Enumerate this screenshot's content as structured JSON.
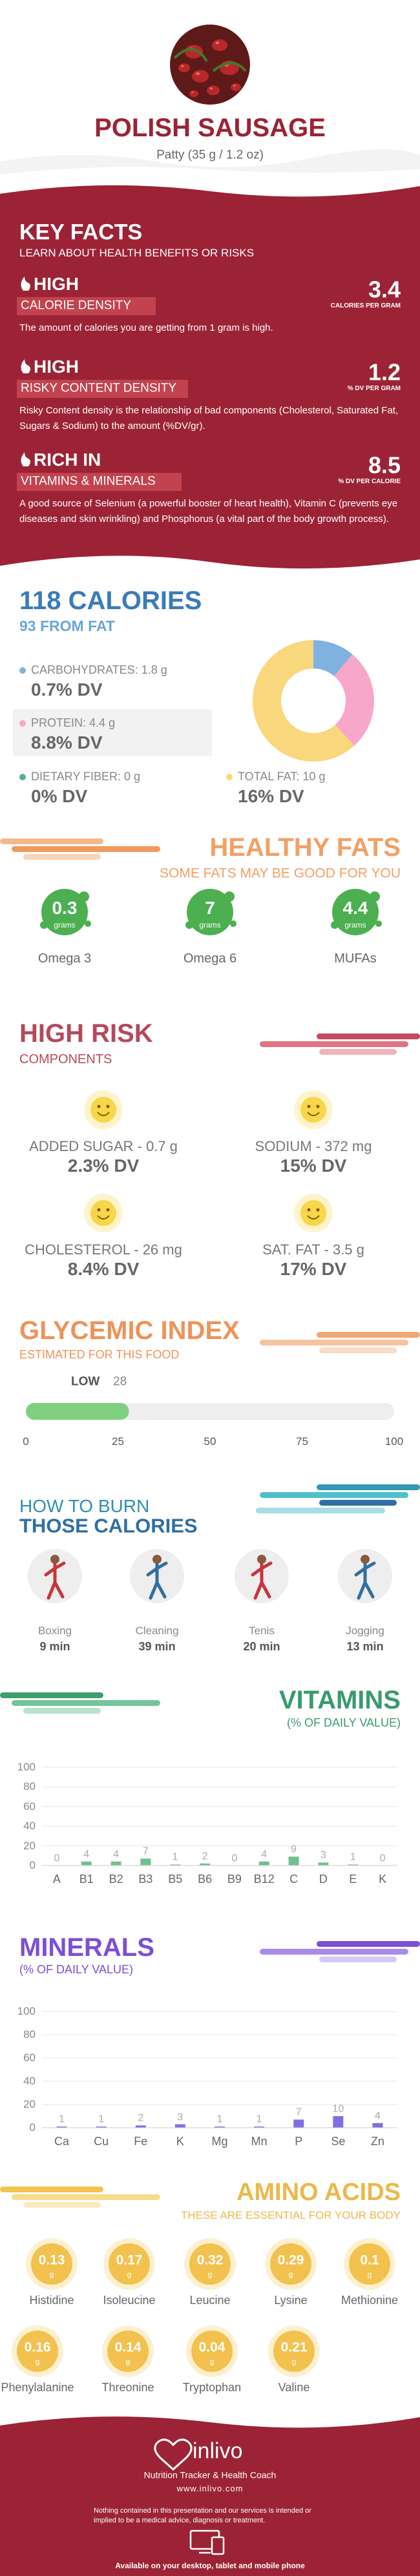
{
  "header": {
    "title": "POLISH SAUSAGE",
    "subtitle": "Patty (35 g / 1.2 oz)"
  },
  "key_facts": {
    "title": "KEY FACTS",
    "subtitle": "LEARN ABOUT HEALTH BENEFITS OR RISKS",
    "items": [
      {
        "level": "HIGH",
        "name": "CALORIE DENSITY",
        "value": 3.4,
        "unit": "CALORIES PER GRAM",
        "text": "The amount of calories you are getting from 1 gram is high."
      },
      {
        "level": "HIGH",
        "name": "RISKY CONTENT DENSITY",
        "value": 1.2,
        "unit": "% DV PER GRAM",
        "text": "Risky Content density is the relationship of bad components (Cholesterol, Saturated Fat, Sugars & Sodium) to the amount (%DV/gr)."
      },
      {
        "level": "RICH IN",
        "name": "VITAMINS & MINERALS",
        "value": 8.5,
        "unit": "% DV PER CALORIE",
        "text": "A good source of Selenium (a powerful booster of heart health), Vitamin C (prevents eye diseases and skin wrinkling) and Phosphorus (a vital part of the body growth process)."
      }
    ]
  },
  "calories": {
    "title": "118 CALORIES",
    "subtitle": "93 FROM FAT",
    "nutrients": [
      {
        "label": "CARBOHYDRATES: 1.8 g",
        "grams": 1.8,
        "dv": "0.7% DV",
        "color": "#7fb2e0"
      },
      {
        "label": "PROTEIN: 4.4 g",
        "grams": 4.4,
        "dv": "8.8% DV",
        "color": "#f7a8c9"
      },
      {
        "label": "DIETARY FIBER: 0 g",
        "grams": 0,
        "dv": "0% DV",
        "color": "#4cb38b"
      },
      {
        "label": "TOTAL FAT: 10 g",
        "grams": 10,
        "dv": "16% DV",
        "color": "#f9d77c"
      }
    ]
  },
  "healthy_fats": {
    "title": "HEALTHY FATS",
    "subtitle": "SOME FATS MAY BE GOOD FOR YOU",
    "items": [
      {
        "value": 0.3,
        "unit": "grams",
        "name": "Omega 3"
      },
      {
        "value": 7,
        "unit": "grams",
        "name": "Omega 6"
      },
      {
        "value": 4.4,
        "unit": "grams",
        "name": "MUFAs"
      }
    ]
  },
  "high_risk": {
    "title": "HIGH RISK",
    "subtitle": "COMPONENTS",
    "items": [
      {
        "label": "ADDED SUGAR - 0.7 g",
        "dv": "2.3% DV"
      },
      {
        "label": "SODIUM - 372 mg",
        "dv": "15% DV"
      },
      {
        "label": "CHOLESTEROL - 26 mg",
        "dv": "8.4% DV"
      },
      {
        "label": "SAT. FAT - 3.5 g",
        "dv": "17% DV"
      }
    ]
  },
  "glycemic": {
    "title": "GLYCEMIC INDEX",
    "subtitle": "ESTIMATED FOR THIS FOOD",
    "level": "LOW",
    "value": 28,
    "xlim": [
      0,
      100
    ],
    "xticks": [
      0,
      25,
      50,
      75,
      100
    ],
    "color": "#7fd07f"
  },
  "burn": {
    "title_top": "HOW TO BURN",
    "title_bottom": "THOSE CALORIES",
    "activities": [
      {
        "name": "Boxing",
        "time": "9 min"
      },
      {
        "name": "Cleaning",
        "time": "39 min"
      },
      {
        "name": "Tenis",
        "time": "20 min"
      },
      {
        "name": "Jogging",
        "time": "13 min"
      }
    ]
  },
  "chart_data": [
    {
      "type": "bar",
      "title": "VITAMINS",
      "subtitle": "(% OF DAILY VALUE)",
      "color": "#6fc08e",
      "categories": [
        "A",
        "B1",
        "B2",
        "B3",
        "B5",
        "B6",
        "B9",
        "B12",
        "C",
        "D",
        "E",
        "K"
      ],
      "values": [
        0,
        4,
        4,
        7,
        1,
        2,
        0,
        4,
        9,
        3,
        1,
        0
      ],
      "ylim": [
        0,
        100
      ],
      "yticks": [
        0,
        20,
        40,
        60,
        80,
        100
      ],
      "grid": true
    },
    {
      "type": "bar",
      "title": "MINERALS",
      "subtitle": "(% OF DAILY VALUE)",
      "color": "#7f70e2",
      "categories": [
        "Ca",
        "Cu",
        "Fe",
        "K",
        "Mg",
        "Mn",
        "P",
        "Se",
        "Zn"
      ],
      "values": [
        1,
        1,
        2,
        3,
        1,
        1,
        7,
        10,
        4
      ],
      "ylim": [
        0,
        100
      ],
      "yticks": [
        0,
        20,
        40,
        60,
        80,
        100
      ],
      "grid": true
    }
  ],
  "amino_acids": {
    "title": "AMINO ACIDS",
    "subtitle": "THESE ARE ESSENTIAL FOR YOUR BODY",
    "items": [
      {
        "name": "Histidine",
        "value": 0.13,
        "unit": "g"
      },
      {
        "name": "Isoleucine",
        "value": 0.17,
        "unit": "g"
      },
      {
        "name": "Leucine",
        "value": 0.32,
        "unit": "g"
      },
      {
        "name": "Lysine",
        "value": 0.29,
        "unit": "g"
      },
      {
        "name": "Methionine",
        "value": 0.1,
        "unit": "g"
      },
      {
        "name": "Phenylalanine",
        "value": 0.16,
        "unit": "g"
      },
      {
        "name": "Threonine",
        "value": 0.14,
        "unit": "g"
      },
      {
        "name": "Tryptophan",
        "value": 0.04,
        "unit": "g"
      },
      {
        "name": "Valine",
        "value": 0.21,
        "unit": "g"
      }
    ]
  },
  "footer": {
    "brand": "inlivo",
    "tagline": "Nutrition Tracker & Health Coach",
    "url": "www.inlivo.com",
    "disclaimer": "Nothing contained in this presentation and our services is intended or implied to be a medical advice, diagnosis or treatment.",
    "available": "Available on your desktop, tablet and mobile phone"
  }
}
